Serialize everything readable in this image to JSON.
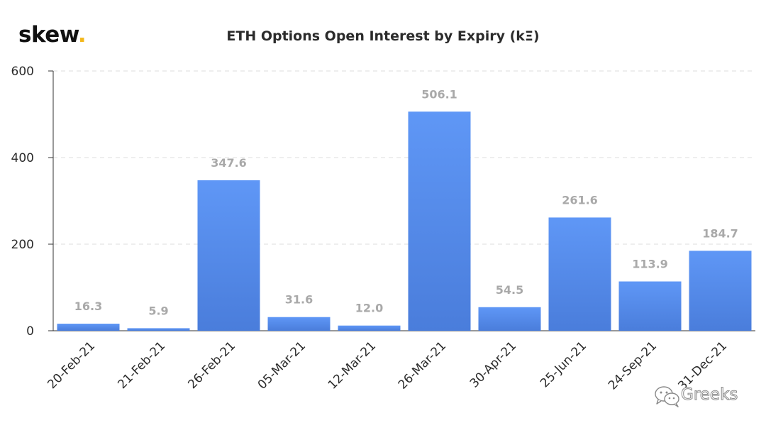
{
  "brand": {
    "name": "skew",
    "dot": ".",
    "dot_color": "#f3b71b"
  },
  "watermark": {
    "text": "Greeks",
    "icon": "wechat-icon"
  },
  "colors": {
    "bar_top": "#5f97f6",
    "bar_bottom": "#4a7ddb",
    "grid": "#dddddd",
    "axis": "#333333",
    "tick_label": "#2b2b2b",
    "data_label": "#a9a9a9"
  },
  "chart_data": {
    "type": "bar",
    "title": "ETH Options Open Interest by Expiry (kΞ)",
    "xlabel": "",
    "ylabel": "",
    "categories": [
      "20-Feb-21",
      "21-Feb-21",
      "26-Feb-21",
      "05-Mar-21",
      "12-Mar-21",
      "26-Mar-21",
      "30-Apr-21",
      "25-Jun-21",
      "24-Sep-21",
      "31-Dec-21"
    ],
    "values": [
      16.3,
      5.9,
      347.6,
      31.6,
      12.0,
      506.1,
      54.5,
      261.6,
      113.9,
      184.7
    ],
    "value_labels": [
      "16.3",
      "5.9",
      "347.6",
      "31.6",
      "12.0",
      "506.1",
      "54.5",
      "261.6",
      "113.9",
      "184.7"
    ],
    "ylim": [
      0,
      600
    ],
    "yticks": [
      0,
      200,
      400,
      600
    ],
    "ytick_labels": [
      "0",
      "200",
      "400",
      "600"
    ],
    "grid": "horizontal dashed",
    "legend": "none"
  }
}
